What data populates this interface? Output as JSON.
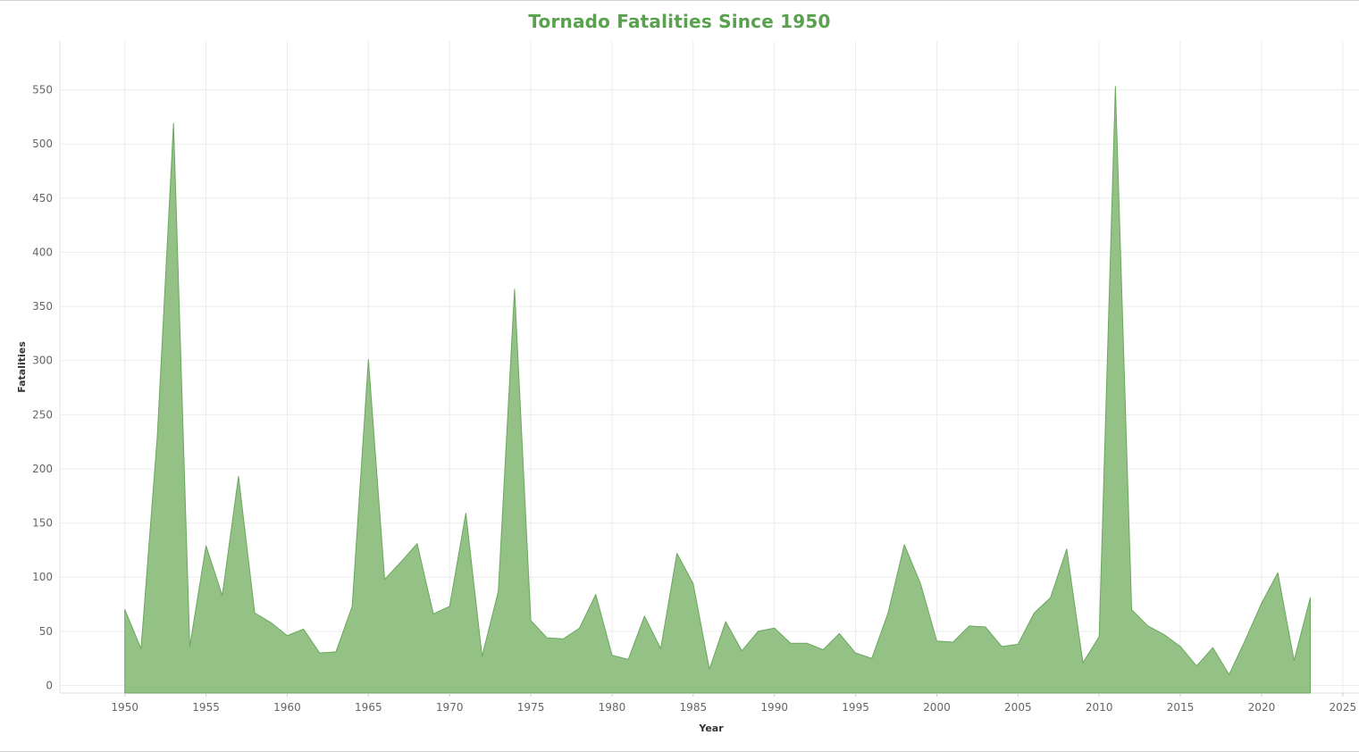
{
  "colors": {
    "area_fill": "#93c186",
    "area_stroke": "#6aa85d",
    "title": "#59a14f",
    "grid": "#ececec"
  },
  "chart_data": {
    "type": "area",
    "title": "Tornado Fatalities Since 1950",
    "xlabel": "Year",
    "ylabel": "Fatalities",
    "xlim": [
      1946,
      2026
    ],
    "ylim": [
      -7,
      595
    ],
    "grid": true,
    "legend": "none",
    "x_ticks": [
      1950,
      1955,
      1960,
      1965,
      1970,
      1975,
      1980,
      1985,
      1990,
      1995,
      2000,
      2005,
      2010,
      2015,
      2020,
      2025
    ],
    "y_ticks": [
      0,
      50,
      100,
      150,
      200,
      250,
      300,
      350,
      400,
      450,
      500,
      550
    ],
    "x": [
      1950,
      1951,
      1952,
      1953,
      1954,
      1955,
      1956,
      1957,
      1958,
      1959,
      1960,
      1961,
      1962,
      1963,
      1964,
      1965,
      1966,
      1967,
      1968,
      1969,
      1970,
      1971,
      1972,
      1973,
      1974,
      1975,
      1976,
      1977,
      1978,
      1979,
      1980,
      1981,
      1982,
      1983,
      1984,
      1985,
      1986,
      1987,
      1988,
      1989,
      1990,
      1991,
      1992,
      1993,
      1994,
      1995,
      1996,
      1997,
      1998,
      1999,
      2000,
      2001,
      2002,
      2003,
      2004,
      2005,
      2006,
      2007,
      2008,
      2009,
      2010,
      2011,
      2012,
      2013,
      2014,
      2015,
      2016,
      2017,
      2018,
      2019,
      2020,
      2021,
      2022,
      2023
    ],
    "values": [
      70,
      34,
      230,
      519,
      36,
      129,
      83,
      193,
      67,
      58,
      46,
      52,
      30,
      31,
      73,
      301,
      98,
      114,
      131,
      66,
      73,
      159,
      27,
      87,
      366,
      60,
      44,
      43,
      53,
      84,
      28,
      24,
      64,
      34,
      122,
      94,
      15,
      59,
      32,
      50,
      53,
      39,
      39,
      33,
      48,
      30,
      25,
      67,
      130,
      94,
      41,
      40,
      55,
      54,
      36,
      38,
      67,
      81,
      126,
      21,
      45,
      553,
      70,
      55,
      47,
      36,
      18,
      35,
      10,
      42,
      76,
      104,
      23,
      81
    ]
  }
}
